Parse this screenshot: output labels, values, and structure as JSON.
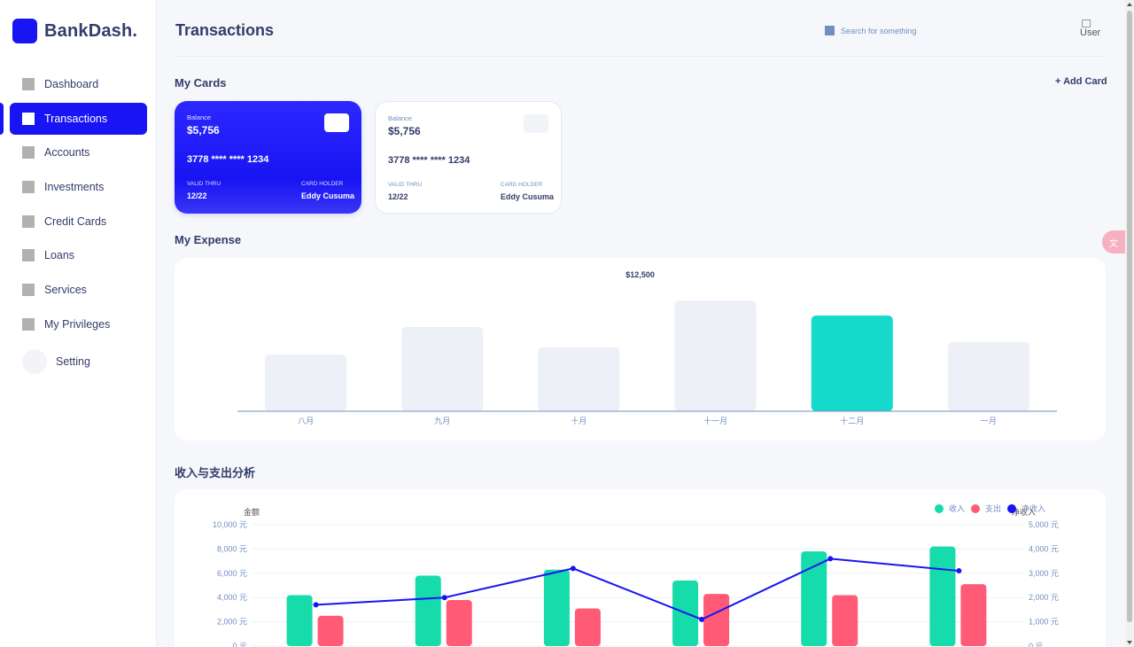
{
  "app": {
    "name": "BankDash."
  },
  "sidebar": {
    "items": [
      {
        "label": "Dashboard",
        "icon": "home-icon"
      },
      {
        "label": "Transactions",
        "icon": "transfer-icon",
        "active": true
      },
      {
        "label": "Accounts",
        "icon": "user-icon"
      },
      {
        "label": "Investments",
        "icon": "investment-icon"
      },
      {
        "label": "Credit Cards",
        "icon": "credit-card-icon"
      },
      {
        "label": "Loans",
        "icon": "loan-icon"
      },
      {
        "label": "Services",
        "icon": "service-icon"
      },
      {
        "label": "My Privileges",
        "icon": "privilege-icon"
      }
    ],
    "setting": {
      "label": "Setting",
      "icon": "gear-icon"
    }
  },
  "header": {
    "title": "Transactions",
    "search_placeholder": "Search for something",
    "avatar_alt": "User"
  },
  "my_cards": {
    "title": "My Cards",
    "add_label": "+ Add Card",
    "cards": [
      {
        "balance_label": "Balance",
        "balance": "$5,756",
        "number": "3778 **** **** 1234",
        "valid_label": "VALID THRU",
        "valid": "12/22",
        "holder_label": "CARD HOLDER",
        "holder": "Eddy Cusuma",
        "style": "blue"
      },
      {
        "balance_label": "Balance",
        "balance": "$5,756",
        "number": "3778 **** **** 1234",
        "valid_label": "VALID THRU",
        "valid": "12/22",
        "holder_label": "CARD HOLDER",
        "holder": "Eddy Cusuma",
        "style": "white"
      }
    ]
  },
  "expense": {
    "title": "My Expense"
  },
  "analysis": {
    "title": "收入与支出分析"
  },
  "colors": {
    "brand": "#1814f3",
    "income": "#16dbaa",
    "expense": "#ff5b76",
    "net": "#1814f3",
    "bar_muted": "#edf0f7",
    "bar_highlight": "#16dbcc"
  },
  "chart_data": [
    {
      "type": "bar",
      "categories": [
        "八月",
        "九月",
        "十月",
        "十一月",
        "十二月",
        "一月"
      ],
      "values": [
        6400,
        9500,
        7200,
        12500,
        10800,
        7800
      ],
      "highlight_index": 4,
      "annotation": "$12,500",
      "ylim": [
        0,
        14000
      ],
      "grid": false
    },
    {
      "type": "bar",
      "categories": [
        "",
        "",
        "",
        "",
        "",
        ""
      ],
      "series": [
        {
          "name": "收入",
          "type": "bar",
          "axis": "left",
          "values": [
            4200,
            5800,
            6300,
            5400,
            7800,
            8200
          ]
        },
        {
          "name": "支出",
          "type": "bar",
          "axis": "left",
          "values": [
            2500,
            3800,
            3100,
            4300,
            4200,
            5100
          ]
        },
        {
          "name": "净收入",
          "type": "line",
          "axis": "right",
          "values": [
            1700,
            2000,
            3200,
            1100,
            3600,
            3100
          ]
        }
      ],
      "ylabel": "金额",
      "y2label": "净收入",
      "ylim": [
        0,
        10000
      ],
      "y2lim": [
        0,
        5000
      ],
      "yticks": [
        "0 元",
        "2,000 元",
        "4,000 元",
        "6,000 元",
        "8,000 元",
        "10,000 元"
      ],
      "y2ticks": [
        "0 元",
        "1,000 元",
        "2,000 元",
        "3,000 元",
        "4,000 元",
        "5,000 元"
      ],
      "legend": "top-right",
      "grid": true
    }
  ]
}
